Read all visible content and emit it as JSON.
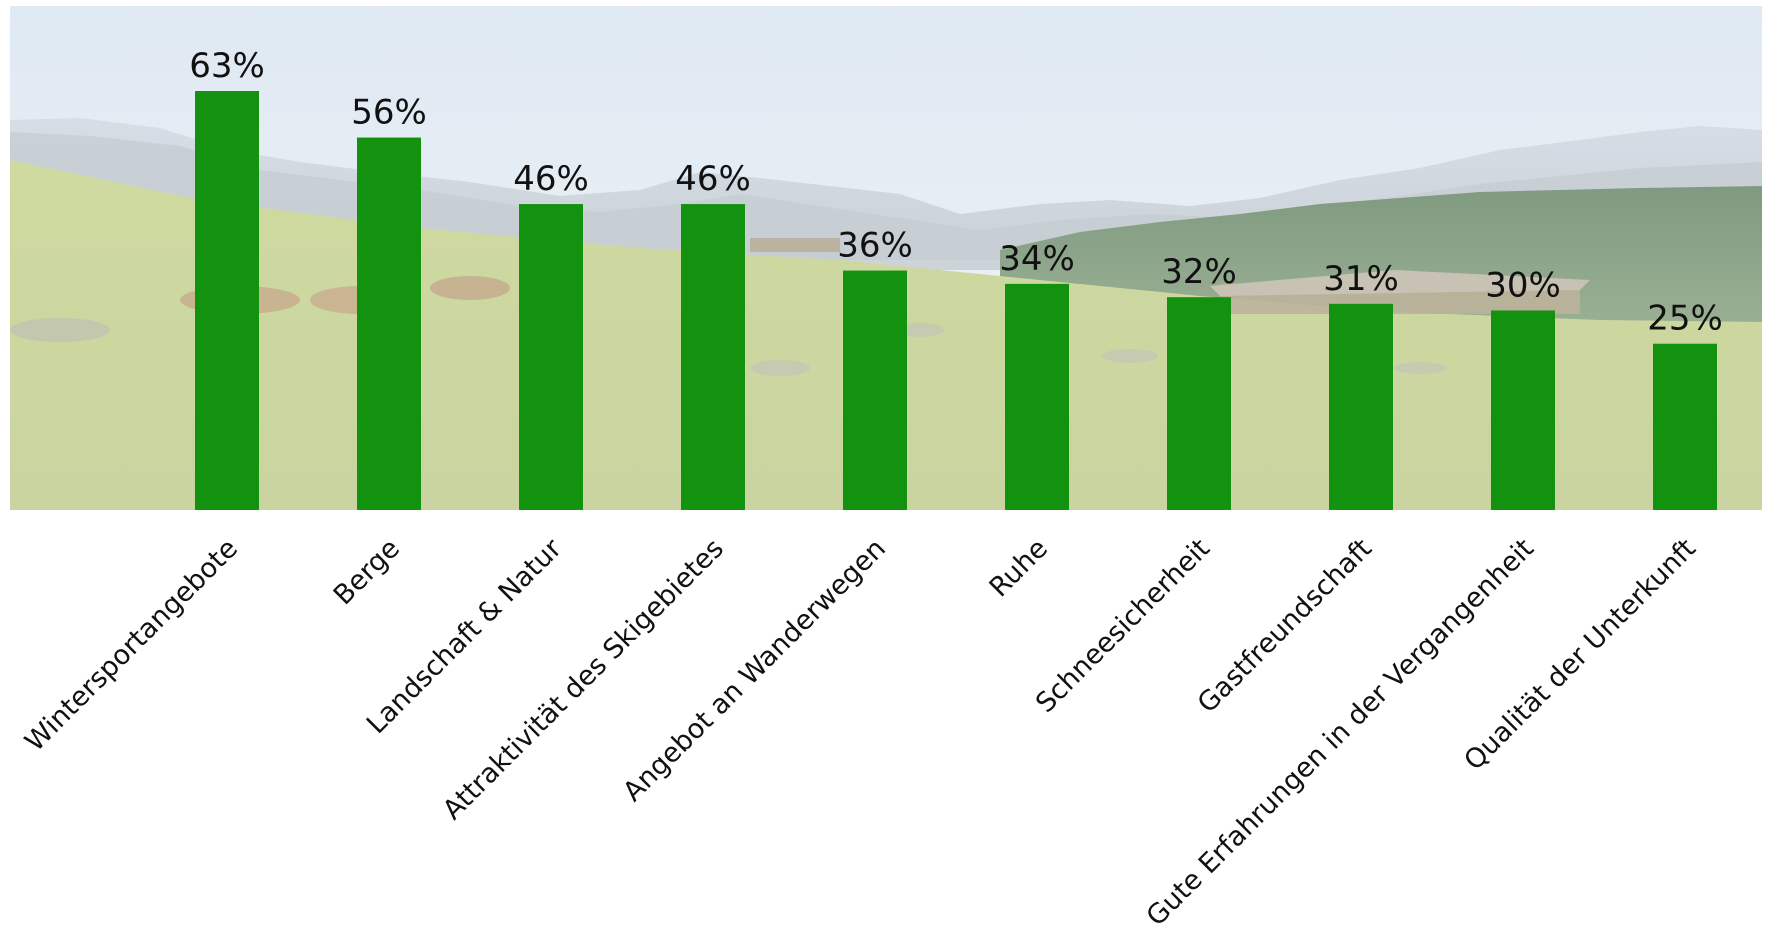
{
  "chart_data": {
    "type": "bar",
    "categories": [
      "Wintersportangebote",
      "Berge",
      "Landschaft & Natur",
      "Attraktivität des Skigebietes",
      "Angebot an Wanderwegen",
      "Ruhe",
      "Schneesicherheit",
      "Gastfreundschaft",
      "Gute Erfahrungen in der Vergangenheit",
      "Qualität der Unterkunft"
    ],
    "values": [
      63,
      56,
      46,
      46,
      36,
      34,
      32,
      31,
      30,
      25
    ],
    "value_labels": [
      "63%",
      "56%",
      "46%",
      "46%",
      "36%",
      "34%",
      "32%",
      "31%",
      "30%",
      "25%"
    ],
    "unit": "%",
    "ylim": [
      0,
      63
    ],
    "grid": false,
    "legend": "none",
    "bar_color": "#12920f",
    "background": "alpine-meadow-photo"
  }
}
